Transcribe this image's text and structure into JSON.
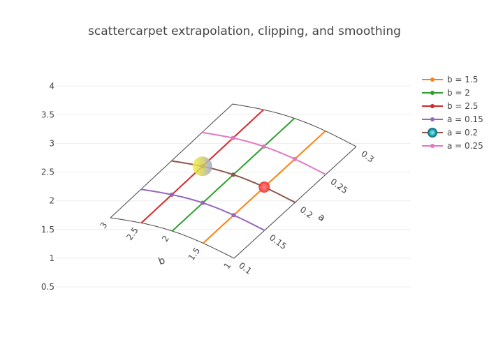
{
  "chart_data": {
    "type": "scatter",
    "title": "scattercarpet extrapolation, clipping, and smoothing",
    "y_axis": {
      "range": [
        0.5,
        4
      ],
      "ticks": [
        "0.5",
        "1",
        "1.5",
        "2",
        "2.5",
        "3",
        "3.5",
        "4"
      ]
    },
    "carpet": {
      "a_axis": {
        "title": "a",
        "range": [
          0.1,
          0.3
        ],
        "ticks": [
          "0.1",
          "0.15",
          "0.2",
          "0.25",
          "0.3"
        ]
      },
      "b_axis": {
        "title": "b",
        "range": [
          1,
          3
        ],
        "ticks": [
          "1",
          "1.5",
          "2",
          "2.5",
          "3"
        ]
      }
    },
    "series": [
      {
        "name": "b = 1.5",
        "color": "#ff7f0e",
        "points": [
          {
            "a": 0.1,
            "b": 1.5
          },
          {
            "a": 0.15,
            "b": 1.5
          },
          {
            "a": 0.2,
            "b": 1.5
          },
          {
            "a": 0.25,
            "b": 1.5
          },
          {
            "a": 0.3,
            "b": 1.5
          }
        ]
      },
      {
        "name": "b = 2",
        "color": "#2ca02c",
        "points": [
          {
            "a": 0.1,
            "b": 2
          },
          {
            "a": 0.15,
            "b": 2
          },
          {
            "a": 0.2,
            "b": 2
          },
          {
            "a": 0.25,
            "b": 2
          },
          {
            "a": 0.3,
            "b": 2
          }
        ]
      },
      {
        "name": "b = 2.5",
        "color": "#d62728",
        "points": [
          {
            "a": 0.1,
            "b": 2.5
          },
          {
            "a": 0.15,
            "b": 2.5
          },
          {
            "a": 0.2,
            "b": 2.5
          },
          {
            "a": 0.25,
            "b": 2.5
          },
          {
            "a": 0.3,
            "b": 2.5
          }
        ]
      },
      {
        "name": "a = 0.15",
        "color": "#9467bd",
        "points": [
          {
            "a": 0.15,
            "b": 1
          },
          {
            "a": 0.15,
            "b": 1.5
          },
          {
            "a": 0.15,
            "b": 2
          },
          {
            "a": 0.15,
            "b": 2.5
          },
          {
            "a": 0.15,
            "b": 3
          }
        ]
      },
      {
        "name": "a = 0.2",
        "color": "#8c564b",
        "points": [
          {
            "a": 0.2,
            "b": 1
          },
          {
            "a": 0.2,
            "b": 1.5
          },
          {
            "a": 0.2,
            "b": 2
          },
          {
            "a": 0.2,
            "b": 2.5
          },
          {
            "a": 0.2,
            "b": 3
          }
        ]
      },
      {
        "name": "a = 0.25",
        "color": "#e377c2",
        "points": [
          {
            "a": 0.25,
            "b": 1
          },
          {
            "a": 0.25,
            "b": 1.5
          },
          {
            "a": 0.25,
            "b": 2
          },
          {
            "a": 0.25,
            "b": 2.5
          },
          {
            "a": 0.25,
            "b": 3
          }
        ]
      }
    ],
    "highlight_markers": [
      {
        "a": 0.2,
        "b": 1.5,
        "color": "#ff3b3b"
      },
      {
        "a": 0.2,
        "b": 2.5,
        "color": "#d8de3c"
      }
    ],
    "legend_position": "top-right"
  }
}
